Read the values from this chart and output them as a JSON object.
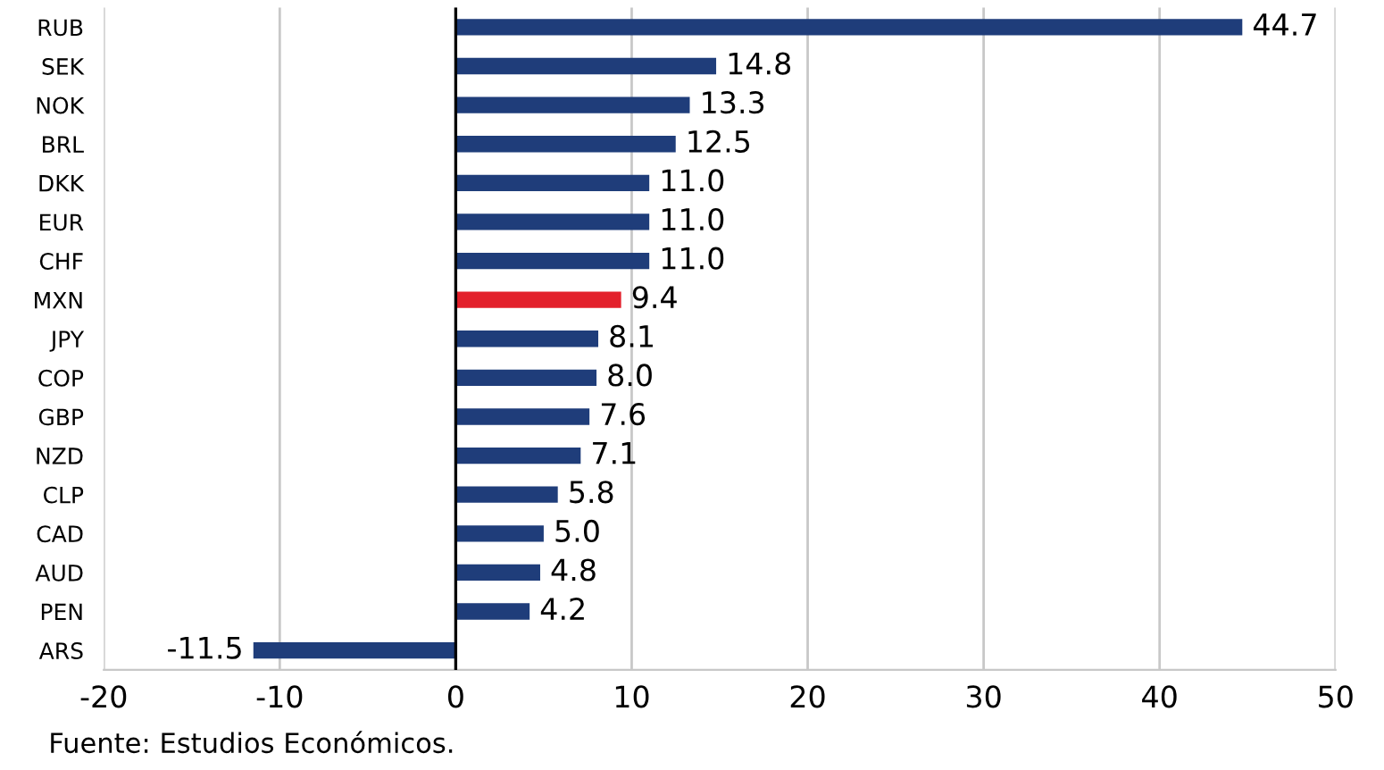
{
  "chart_data": {
    "type": "bar",
    "orientation": "horizontal",
    "categories": [
      "RUB",
      "SEK",
      "NOK",
      "BRL",
      "DKK",
      "EUR",
      "CHF",
      "MXN",
      "JPY",
      "COP",
      "GBP",
      "NZD",
      "CLP",
      "CAD",
      "AUD",
      "PEN",
      "ARS"
    ],
    "values": [
      44.7,
      14.8,
      13.3,
      12.5,
      11.0,
      11.0,
      11.0,
      9.4,
      8.1,
      8.0,
      7.6,
      7.1,
      5.8,
      5.0,
      4.8,
      4.2,
      -11.5
    ],
    "colors": [
      "#1f3d7a",
      "#1f3d7a",
      "#1f3d7a",
      "#1f3d7a",
      "#1f3d7a",
      "#1f3d7a",
      "#1f3d7a",
      "#e3202b",
      "#1f3d7a",
      "#1f3d7a",
      "#1f3d7a",
      "#1f3d7a",
      "#1f3d7a",
      "#1f3d7a",
      "#1f3d7a",
      "#1f3d7a",
      "#1f3d7a"
    ],
    "value_labels": [
      "44.7",
      "14.8",
      "13.3",
      "12.5",
      "11.0",
      "11.0",
      "11.0",
      "9.4",
      "8.1",
      "8.0",
      "7.6",
      "7.1",
      "5.8",
      "5.0",
      "4.8",
      "4.2",
      "-11.5"
    ],
    "xlim": [
      -20,
      50
    ],
    "xticks": [
      -20,
      -10,
      0,
      10,
      20,
      30,
      40,
      50
    ],
    "grid": "x",
    "annotations": [
      "Fuente: Estudios Económicos."
    ]
  }
}
